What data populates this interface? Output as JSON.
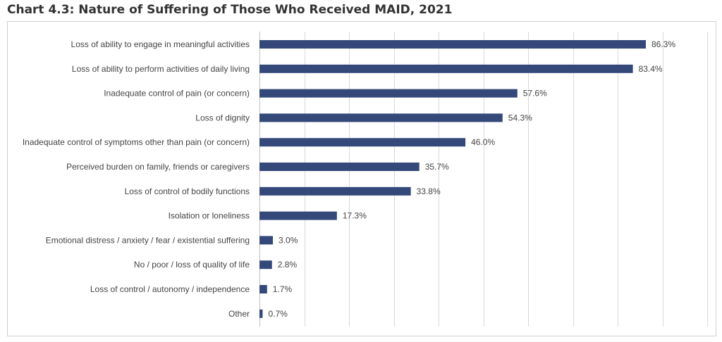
{
  "chart_data": {
    "type": "bar",
    "orientation": "horizontal",
    "title": "Chart 4.3: Nature of Suffering of Those Who Received MAID, 2021",
    "categories": [
      "Loss of ability to engage in meaningful activities",
      "Loss of ability to perform activities of daily living",
      "Inadequate control of pain (or concern)",
      "Loss of dignity",
      "Inadequate control of symptoms other than pain (or concern)",
      "Perceived burden on family, friends or caregivers",
      "Loss of control of bodily functions",
      "Isolation or loneliness",
      "Emotional distress / anxiety / fear / existential suffering",
      "No / poor / loss of quality of life",
      "Loss of control / autonomy / independence",
      "Other"
    ],
    "values": [
      86.3,
      83.4,
      57.6,
      54.3,
      46.0,
      35.7,
      33.8,
      17.3,
      3.0,
      2.8,
      1.7,
      0.7
    ],
    "value_labels": [
      "86.3%",
      "83.4%",
      "57.6%",
      "54.3%",
      "46.0%",
      "35.7%",
      "33.8%",
      "17.3%",
      "3.0%",
      "2.8%",
      "1.7%",
      "0.7%"
    ],
    "xlim": [
      0,
      100
    ],
    "x_grid_step": 10,
    "grid": "vertical",
    "bar_color": "#34497a"
  }
}
